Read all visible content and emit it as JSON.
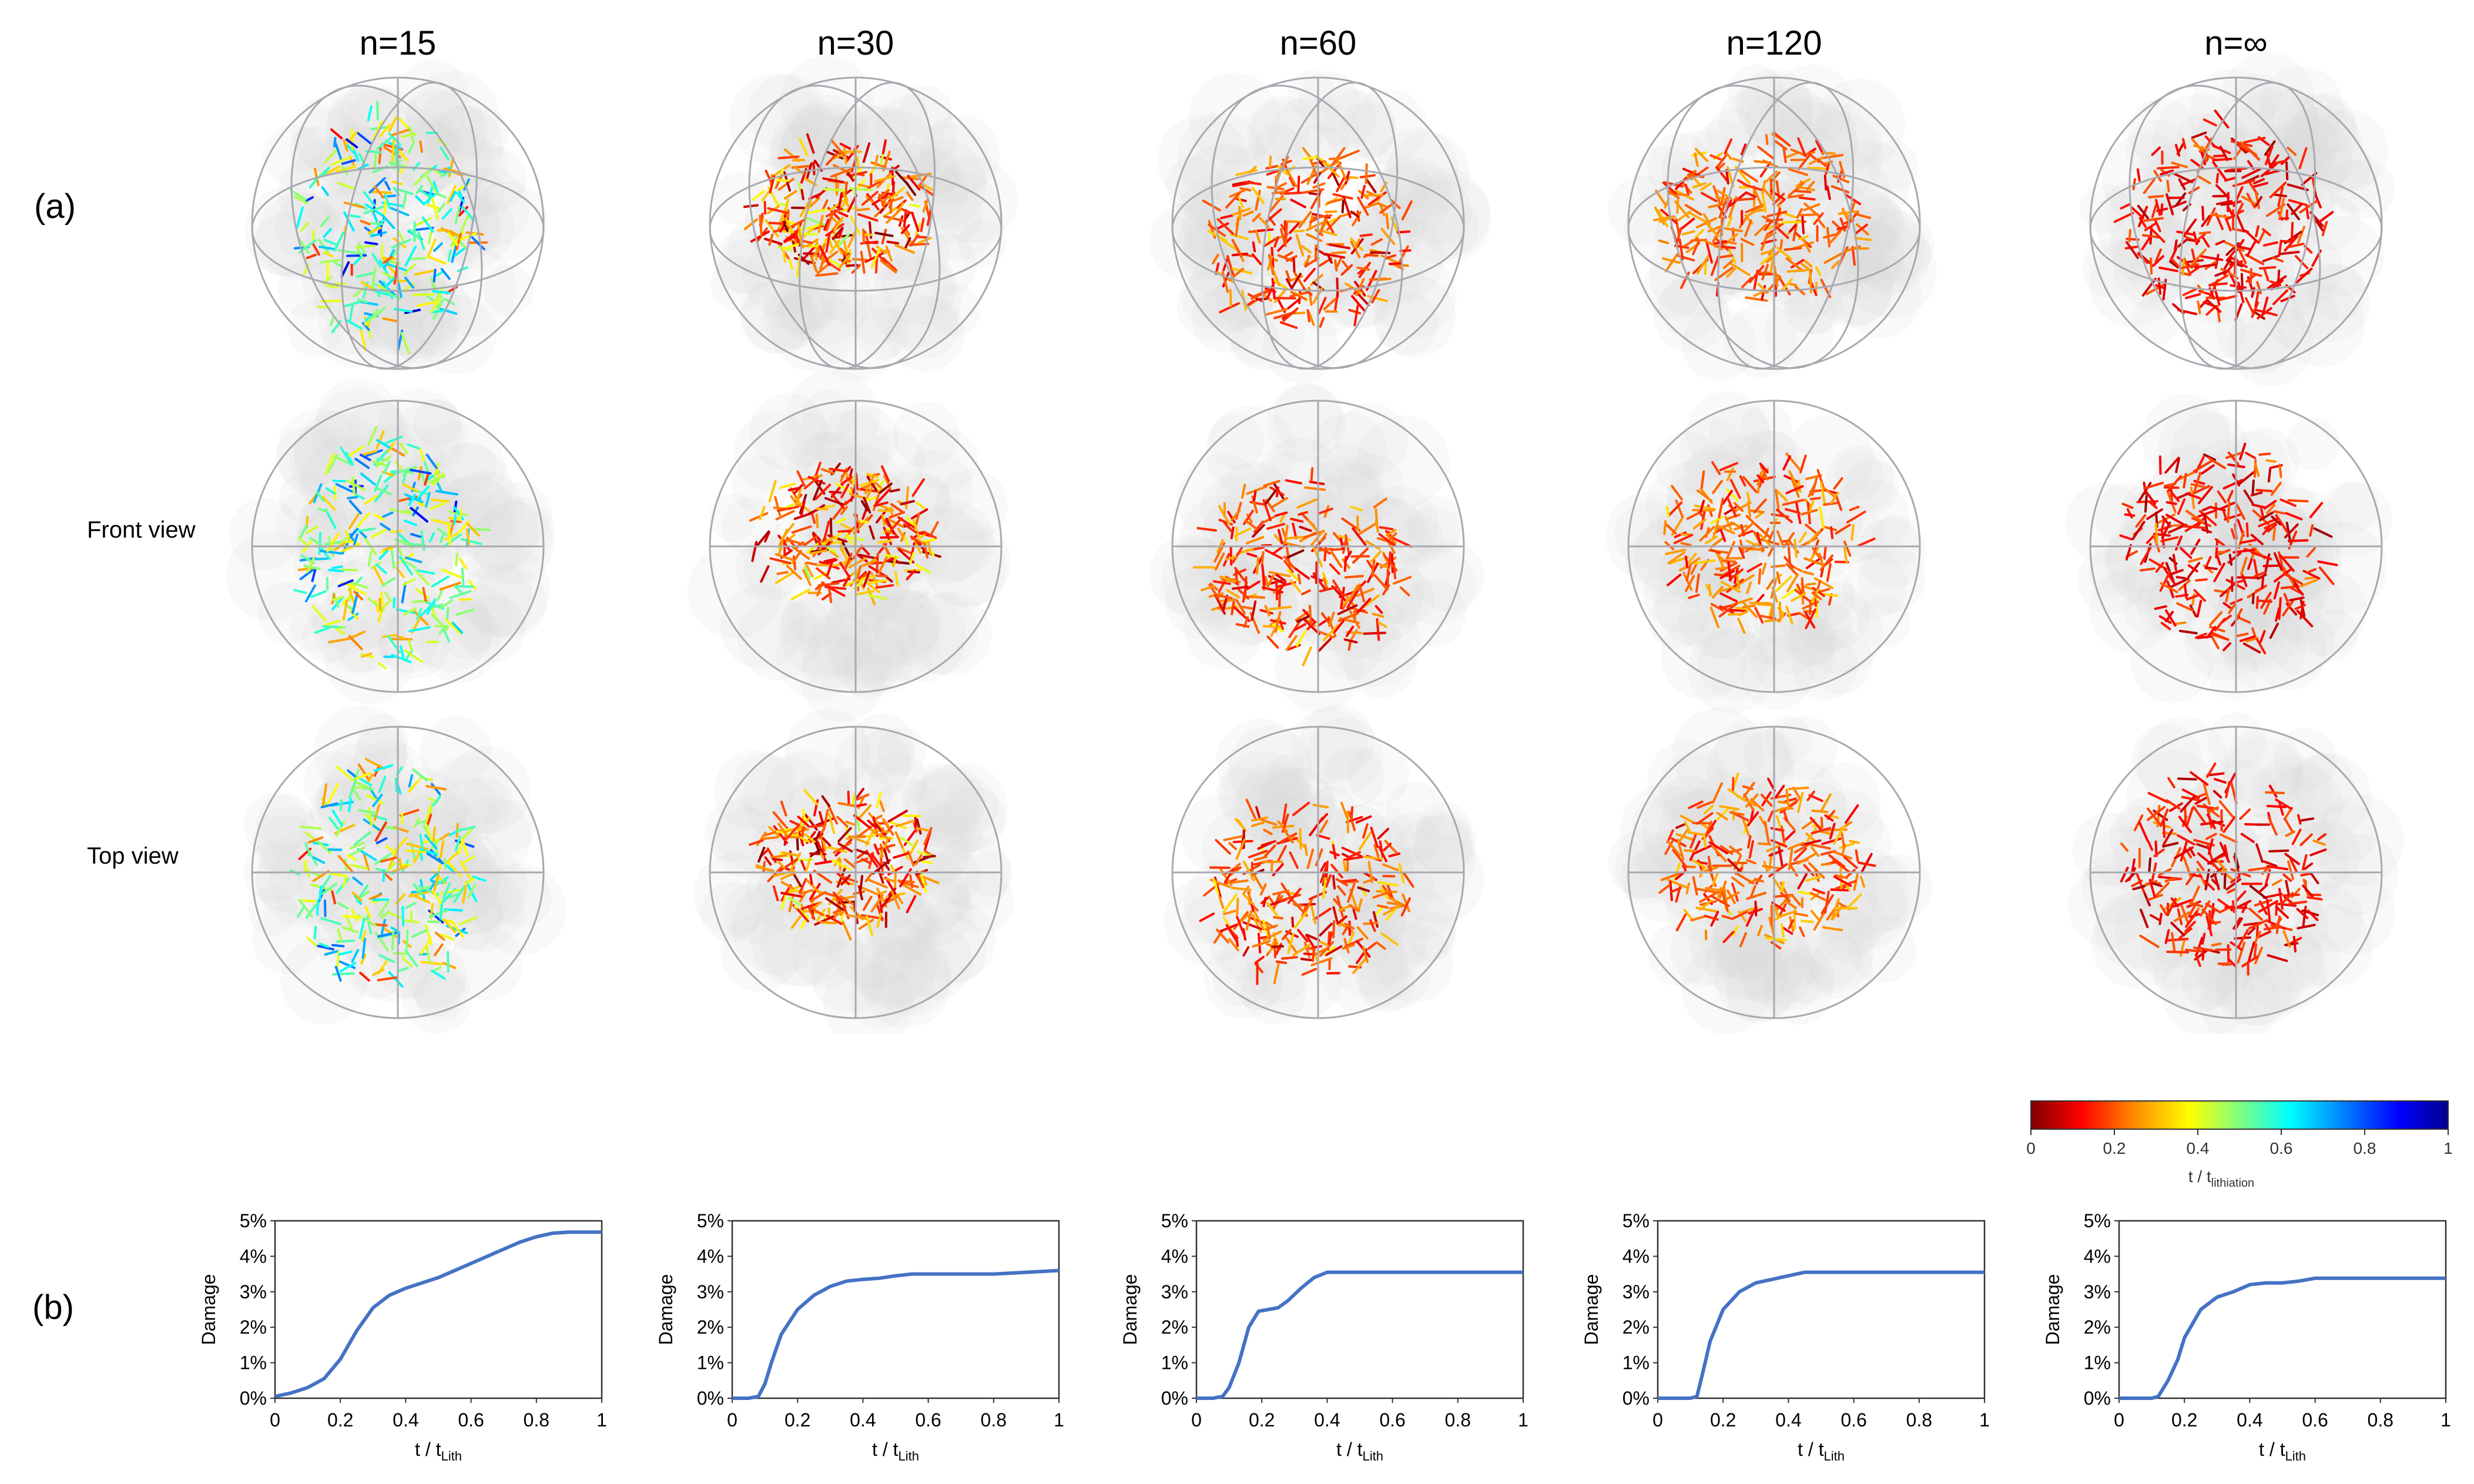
{
  "figure": {
    "panel_labels": [
      "(a)",
      "(b)"
    ],
    "row_labels": [
      "Front view",
      "Top view"
    ],
    "columns": [
      "n=15",
      "n=30",
      "n=60",
      "n=120",
      "n=∞"
    ]
  },
  "colorbar": {
    "ticks": [
      "0",
      "0.2",
      "0.4",
      "0.6",
      "0.8",
      "1"
    ],
    "label_main": "t / t",
    "label_sub": "lithiation",
    "colors": [
      "#7f0000",
      "#ff0000",
      "#ff8c00",
      "#ffff00",
      "#7fff7f",
      "#00ffff",
      "#0080ff",
      "#0000ff",
      "#00008f"
    ]
  },
  "colors": {
    "curve": "#4472c4",
    "sphere_outline": "#a8a8b0",
    "cloud": "#d9d9d9"
  },
  "chart_data": [
    {
      "type": "line",
      "title": "n=15",
      "xlabel_main": "t / t",
      "xlabel_sub": "Lith",
      "ylabel": "Damage",
      "xlim": [
        0,
        1
      ],
      "ylim": [
        0,
        5
      ],
      "xticks": [
        "0",
        "0.2",
        "0.4",
        "0.6",
        "0.8",
        "1"
      ],
      "yticks": [
        "0%",
        "1%",
        "2%",
        "3%",
        "4%",
        "5%"
      ],
      "x": [
        0,
        0.05,
        0.1,
        0.15,
        0.2,
        0.25,
        0.3,
        0.35,
        0.4,
        0.45,
        0.5,
        0.55,
        0.6,
        0.65,
        0.7,
        0.75,
        0.8,
        0.85,
        0.9,
        0.95,
        1.0
      ],
      "y": [
        0.05,
        0.15,
        0.3,
        0.55,
        1.1,
        1.9,
        2.55,
        2.9,
        3.1,
        3.25,
        3.4,
        3.6,
        3.8,
        4.0,
        4.2,
        4.4,
        4.55,
        4.65,
        4.68,
        4.68,
        4.68
      ]
    },
    {
      "type": "line",
      "title": "n=30",
      "xlabel_main": "t / t",
      "xlabel_sub": "Lith",
      "ylabel": "Damage",
      "xlim": [
        0,
        1
      ],
      "ylim": [
        0,
        5
      ],
      "xticks": [
        "0",
        "0.2",
        "0.4",
        "0.6",
        "0.8",
        "1"
      ],
      "yticks": [
        "0%",
        "1%",
        "2%",
        "3%",
        "4%",
        "5%"
      ],
      "x": [
        0,
        0.05,
        0.08,
        0.1,
        0.12,
        0.15,
        0.2,
        0.25,
        0.3,
        0.35,
        0.4,
        0.45,
        0.5,
        0.55,
        0.6,
        0.7,
        0.8,
        0.9,
        1.0
      ],
      "y": [
        0,
        0,
        0.05,
        0.4,
        1.0,
        1.8,
        2.5,
        2.9,
        3.15,
        3.3,
        3.35,
        3.38,
        3.45,
        3.5,
        3.5,
        3.5,
        3.5,
        3.55,
        3.6
      ]
    },
    {
      "type": "line",
      "title": "n=60",
      "xlabel_main": "t / t",
      "xlabel_sub": "Lith",
      "ylabel": "Damage",
      "xlim": [
        0,
        1
      ],
      "ylim": [
        0,
        5
      ],
      "xticks": [
        "0",
        "0.2",
        "0.4",
        "0.6",
        "0.8",
        "1"
      ],
      "yticks": [
        "0%",
        "1%",
        "2%",
        "3%",
        "4%",
        "5%"
      ],
      "x": [
        0,
        0.05,
        0.08,
        0.1,
        0.13,
        0.16,
        0.19,
        0.22,
        0.25,
        0.28,
        0.32,
        0.36,
        0.4,
        0.45,
        0.5,
        0.6,
        0.7,
        0.8,
        0.9,
        1.0
      ],
      "y": [
        0,
        0,
        0.05,
        0.3,
        1.0,
        2.0,
        2.45,
        2.5,
        2.55,
        2.75,
        3.1,
        3.4,
        3.55,
        3.55,
        3.55,
        3.55,
        3.55,
        3.55,
        3.55,
        3.55
      ]
    },
    {
      "type": "line",
      "title": "n=120",
      "xlabel_main": "t / t",
      "xlabel_sub": "Lith",
      "ylabel": "Damage",
      "xlim": [
        0,
        1
      ],
      "ylim": [
        0,
        5
      ],
      "xticks": [
        "0",
        "0.2",
        "0.4",
        "0.6",
        "0.8",
        "1"
      ],
      "yticks": [
        "0%",
        "1%",
        "2%",
        "3%",
        "4%",
        "5%"
      ],
      "x": [
        0,
        0.05,
        0.1,
        0.12,
        0.14,
        0.16,
        0.2,
        0.25,
        0.3,
        0.35,
        0.4,
        0.45,
        0.5,
        0.6,
        0.7,
        0.8,
        0.9,
        1.0
      ],
      "y": [
        0,
        0,
        0,
        0.05,
        0.8,
        1.6,
        2.5,
        3.0,
        3.25,
        3.35,
        3.45,
        3.55,
        3.55,
        3.55,
        3.55,
        3.55,
        3.55,
        3.55
      ]
    },
    {
      "type": "line",
      "title": "n=∞",
      "xlabel_main": "t / t",
      "xlabel_sub": "Lith",
      "ylabel": "Damage",
      "xlim": [
        0,
        1
      ],
      "ylim": [
        0,
        5
      ],
      "xticks": [
        "0",
        "0.2",
        "0.4",
        "0.6",
        "0.8",
        "1"
      ],
      "yticks": [
        "0%",
        "1%",
        "2%",
        "3%",
        "4%",
        "5%"
      ],
      "x": [
        0,
        0.05,
        0.1,
        0.12,
        0.15,
        0.18,
        0.2,
        0.25,
        0.3,
        0.35,
        0.4,
        0.45,
        0.5,
        0.55,
        0.6,
        0.7,
        0.8,
        0.9,
        1.0
      ],
      "y": [
        0,
        0,
        0,
        0.05,
        0.5,
        1.1,
        1.7,
        2.5,
        2.85,
        3.0,
        3.2,
        3.25,
        3.25,
        3.3,
        3.38,
        3.38,
        3.38,
        3.38,
        3.38
      ]
    }
  ]
}
